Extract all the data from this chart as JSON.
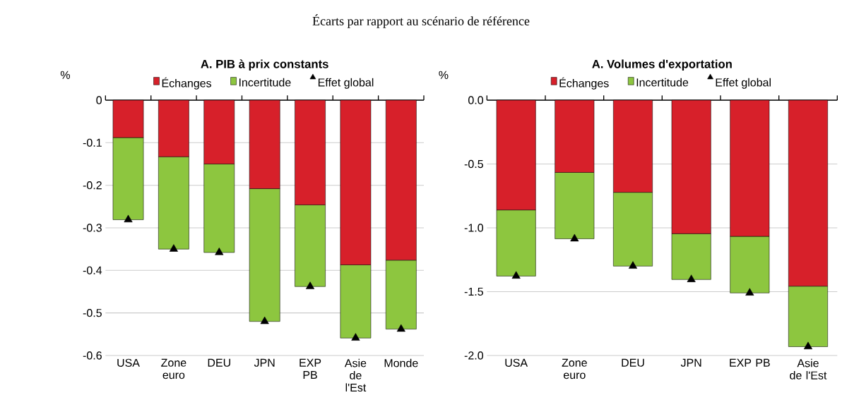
{
  "chart_data": [
    {
      "type": "bar",
      "stacked": true,
      "title": "A. PIB à prix constants",
      "ylabel": "%",
      "annotations": [
        "Écarts par rapport au scénario de référence"
      ],
      "categories": [
        "USA",
        "Zone euro",
        "DEU",
        "JPN",
        "EXP PB",
        "Asie de l'Est",
        "Monde"
      ],
      "series": [
        {
          "name": "Échanges",
          "color": "#d7202a",
          "values": [
            -0.088,
            -0.133,
            -0.15,
            -0.208,
            -0.246,
            -0.387,
            -0.376
          ]
        },
        {
          "name": "Incertitude",
          "color": "#8dc63f",
          "values": [
            -0.193,
            -0.217,
            -0.208,
            -0.312,
            -0.192,
            -0.172,
            -0.162
          ]
        },
        {
          "name": "Effet global",
          "type": "scatter",
          "marker": "triangle",
          "color": "#000000",
          "values": [
            -0.281,
            -0.35,
            -0.358,
            -0.52,
            -0.438,
            -0.559,
            -0.538
          ]
        }
      ],
      "ylim": [
        -0.6,
        0
      ],
      "yticks": [
        0,
        -0.1,
        -0.2,
        -0.3,
        -0.4,
        -0.5,
        -0.6
      ],
      "grid": "y",
      "legend": "top"
    },
    {
      "type": "bar",
      "stacked": true,
      "title": "A. Volumes d'exportation",
      "ylabel": "%",
      "categories": [
        "USA",
        "Zone euro",
        "DEU",
        "JPN",
        "EXP PB",
        "Asie de l'Est"
      ],
      "series": [
        {
          "name": "Échanges",
          "color": "#d7202a",
          "values": [
            -0.86,
            -0.566,
            -0.722,
            -1.046,
            -1.067,
            -1.457
          ]
        },
        {
          "name": "Incertitude",
          "color": "#8dc63f",
          "values": [
            -0.518,
            -0.52,
            -0.578,
            -0.359,
            -0.443,
            -0.474
          ]
        },
        {
          "name": "Effet global",
          "type": "scatter",
          "marker": "triangle",
          "color": "#000000",
          "values": [
            -1.378,
            -1.086,
            -1.3,
            -1.405,
            -1.51,
            -1.931
          ]
        }
      ],
      "ylim": [
        -2.0,
        0
      ],
      "yticks": [
        {
          "value": 0,
          "label": "0.0"
        },
        -0.5,
        {
          "value": -1.0,
          "label": "-1.0"
        },
        -1.5,
        {
          "value": -2.0,
          "label": "-2.0"
        }
      ],
      "grid": "y",
      "legend": "top"
    }
  ]
}
